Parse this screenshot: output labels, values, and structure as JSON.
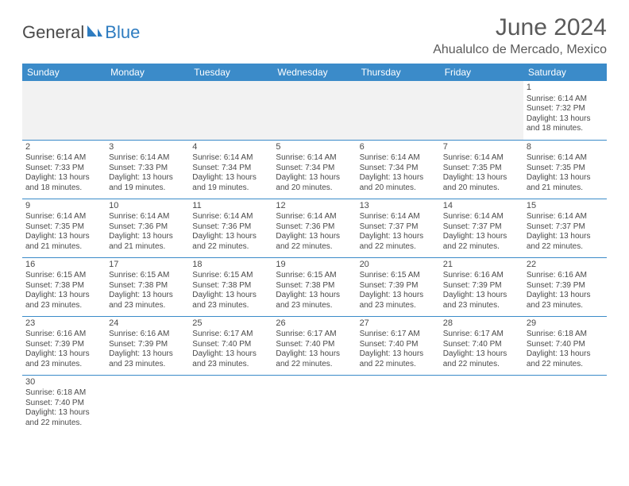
{
  "brand": {
    "part1": "General",
    "part2": "Blue"
  },
  "title": "June 2024",
  "location": "Ahualulco de Mercado, Mexico",
  "colors": {
    "header_bg": "#3b8bc9",
    "header_text": "#ffffff",
    "border": "#3b8bc9",
    "text": "#4a4a4a",
    "brand_blue": "#2e7cc0"
  },
  "days_of_week": [
    "Sunday",
    "Monday",
    "Tuesday",
    "Wednesday",
    "Thursday",
    "Friday",
    "Saturday"
  ],
  "weeks": [
    [
      null,
      null,
      null,
      null,
      null,
      null,
      {
        "n": "1",
        "sr": "6:14 AM",
        "ss": "7:32 PM",
        "dl": "13 hours and 18 minutes."
      }
    ],
    [
      {
        "n": "2",
        "sr": "6:14 AM",
        "ss": "7:33 PM",
        "dl": "13 hours and 18 minutes."
      },
      {
        "n": "3",
        "sr": "6:14 AM",
        "ss": "7:33 PM",
        "dl": "13 hours and 19 minutes."
      },
      {
        "n": "4",
        "sr": "6:14 AM",
        "ss": "7:34 PM",
        "dl": "13 hours and 19 minutes."
      },
      {
        "n": "5",
        "sr": "6:14 AM",
        "ss": "7:34 PM",
        "dl": "13 hours and 20 minutes."
      },
      {
        "n": "6",
        "sr": "6:14 AM",
        "ss": "7:34 PM",
        "dl": "13 hours and 20 minutes."
      },
      {
        "n": "7",
        "sr": "6:14 AM",
        "ss": "7:35 PM",
        "dl": "13 hours and 20 minutes."
      },
      {
        "n": "8",
        "sr": "6:14 AM",
        "ss": "7:35 PM",
        "dl": "13 hours and 21 minutes."
      }
    ],
    [
      {
        "n": "9",
        "sr": "6:14 AM",
        "ss": "7:35 PM",
        "dl": "13 hours and 21 minutes."
      },
      {
        "n": "10",
        "sr": "6:14 AM",
        "ss": "7:36 PM",
        "dl": "13 hours and 21 minutes."
      },
      {
        "n": "11",
        "sr": "6:14 AM",
        "ss": "7:36 PM",
        "dl": "13 hours and 22 minutes."
      },
      {
        "n": "12",
        "sr": "6:14 AM",
        "ss": "7:36 PM",
        "dl": "13 hours and 22 minutes."
      },
      {
        "n": "13",
        "sr": "6:14 AM",
        "ss": "7:37 PM",
        "dl": "13 hours and 22 minutes."
      },
      {
        "n": "14",
        "sr": "6:14 AM",
        "ss": "7:37 PM",
        "dl": "13 hours and 22 minutes."
      },
      {
        "n": "15",
        "sr": "6:14 AM",
        "ss": "7:37 PM",
        "dl": "13 hours and 22 minutes."
      }
    ],
    [
      {
        "n": "16",
        "sr": "6:15 AM",
        "ss": "7:38 PM",
        "dl": "13 hours and 23 minutes."
      },
      {
        "n": "17",
        "sr": "6:15 AM",
        "ss": "7:38 PM",
        "dl": "13 hours and 23 minutes."
      },
      {
        "n": "18",
        "sr": "6:15 AM",
        "ss": "7:38 PM",
        "dl": "13 hours and 23 minutes."
      },
      {
        "n": "19",
        "sr": "6:15 AM",
        "ss": "7:38 PM",
        "dl": "13 hours and 23 minutes."
      },
      {
        "n": "20",
        "sr": "6:15 AM",
        "ss": "7:39 PM",
        "dl": "13 hours and 23 minutes."
      },
      {
        "n": "21",
        "sr": "6:16 AM",
        "ss": "7:39 PM",
        "dl": "13 hours and 23 minutes."
      },
      {
        "n": "22",
        "sr": "6:16 AM",
        "ss": "7:39 PM",
        "dl": "13 hours and 23 minutes."
      }
    ],
    [
      {
        "n": "23",
        "sr": "6:16 AM",
        "ss": "7:39 PM",
        "dl": "13 hours and 23 minutes."
      },
      {
        "n": "24",
        "sr": "6:16 AM",
        "ss": "7:39 PM",
        "dl": "13 hours and 23 minutes."
      },
      {
        "n": "25",
        "sr": "6:17 AM",
        "ss": "7:40 PM",
        "dl": "13 hours and 23 minutes."
      },
      {
        "n": "26",
        "sr": "6:17 AM",
        "ss": "7:40 PM",
        "dl": "13 hours and 22 minutes."
      },
      {
        "n": "27",
        "sr": "6:17 AM",
        "ss": "7:40 PM",
        "dl": "13 hours and 22 minutes."
      },
      {
        "n": "28",
        "sr": "6:17 AM",
        "ss": "7:40 PM",
        "dl": "13 hours and 22 minutes."
      },
      {
        "n": "29",
        "sr": "6:18 AM",
        "ss": "7:40 PM",
        "dl": "13 hours and 22 minutes."
      }
    ],
    [
      {
        "n": "30",
        "sr": "6:18 AM",
        "ss": "7:40 PM",
        "dl": "13 hours and 22 minutes."
      },
      null,
      null,
      null,
      null,
      null,
      null
    ]
  ],
  "labels": {
    "sunrise": "Sunrise:",
    "sunset": "Sunset:",
    "daylight": "Daylight:"
  }
}
